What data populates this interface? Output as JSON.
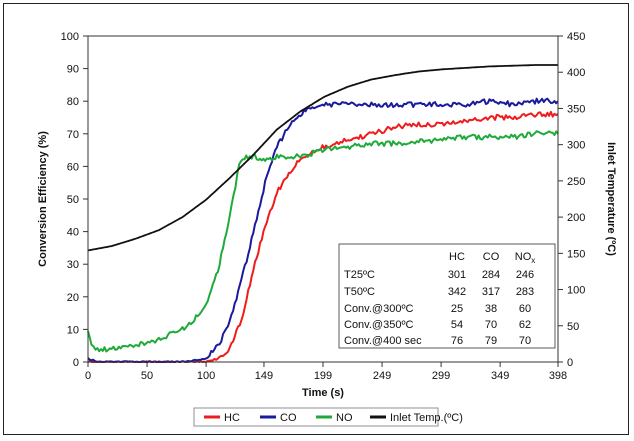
{
  "chart_data": {
    "type": "line",
    "xlabel": "Time (s)",
    "ylabel": "Conversion Efficiency (%)",
    "y2label": "Inlet Temperature (ºC)",
    "xlim": [
      0,
      398
    ],
    "ylim": [
      0,
      100
    ],
    "y2lim": [
      0,
      450
    ],
    "x_ticks": [
      0,
      50,
      100,
      149,
      199,
      249,
      299,
      349,
      398
    ],
    "y_ticks": [
      0,
      10,
      20,
      30,
      40,
      50,
      60,
      70,
      80,
      90,
      100
    ],
    "y2_ticks": [
      0,
      50,
      100,
      150,
      200,
      250,
      300,
      350,
      400,
      450
    ],
    "grid": false,
    "legend_position": "bottom",
    "series": [
      {
        "name": "HC",
        "color": "#ee1c1c",
        "axis": "left",
        "x": [
          0,
          20,
          60,
          100,
          110,
          120,
          130,
          140,
          150,
          160,
          170,
          180,
          190,
          200,
          220,
          240,
          260,
          280,
          300,
          320,
          340,
          360,
          380,
          398
        ],
        "y": [
          0,
          0,
          0,
          0,
          1,
          4,
          13,
          28,
          42,
          52,
          58,
          62,
          64,
          66,
          68,
          70,
          72,
          73,
          73,
          74,
          75,
          75,
          76,
          76
        ]
      },
      {
        "name": "CO",
        "color": "#1a1a9c",
        "axis": "left",
        "x": [
          0,
          10,
          40,
          80,
          100,
          110,
          120,
          130,
          140,
          150,
          160,
          170,
          180,
          190,
          200,
          220,
          240,
          260,
          280,
          300,
          320,
          340,
          360,
          380,
          398
        ],
        "y": [
          1,
          0,
          0,
          0,
          1,
          5,
          12,
          25,
          40,
          55,
          66,
          72,
          76,
          78,
          79,
          79,
          79,
          79,
          79,
          79,
          79,
          80,
          79,
          80,
          80
        ]
      },
      {
        "name": "NO",
        "color": "#1faa3a",
        "axis": "left",
        "x": [
          0,
          3,
          8,
          20,
          40,
          60,
          80,
          90,
          100,
          110,
          120,
          128,
          134,
          140,
          150,
          160,
          180,
          200,
          220,
          240,
          260,
          280,
          300,
          320,
          340,
          360,
          380,
          398
        ],
        "y": [
          9,
          5,
          4,
          4,
          5,
          7,
          10,
          13,
          18,
          28,
          45,
          60,
          63,
          63,
          62,
          63,
          63,
          65,
          66,
          67,
          67,
          68,
          68,
          69,
          69,
          69,
          70,
          70
        ]
      },
      {
        "name": "Inlet Temp.(ºC)",
        "color": "#111111",
        "axis": "right",
        "x": [
          0,
          20,
          40,
          60,
          80,
          100,
          120,
          140,
          160,
          180,
          200,
          220,
          240,
          260,
          280,
          300,
          320,
          340,
          360,
          380,
          398
        ],
        "y": [
          154,
          160,
          170,
          182,
          200,
          224,
          254,
          286,
          321,
          346,
          366,
          380,
          390,
          396,
          401,
          404,
          406,
          408,
          409,
          410,
          410
        ]
      }
    ],
    "table": {
      "headers": [
        "",
        "HC",
        "CO",
        "NOx"
      ],
      "rows": [
        [
          "T25ºC",
          "301",
          "284",
          "246"
        ],
        [
          "T50ºC",
          "342",
          "317",
          "283"
        ],
        [
          "Conv.@300ºC",
          "25",
          "38",
          "60"
        ],
        [
          "Conv.@350ºC",
          "54",
          "70",
          "62"
        ],
        [
          "Conv.@400 sec",
          "76",
          "79",
          "70"
        ]
      ]
    }
  }
}
